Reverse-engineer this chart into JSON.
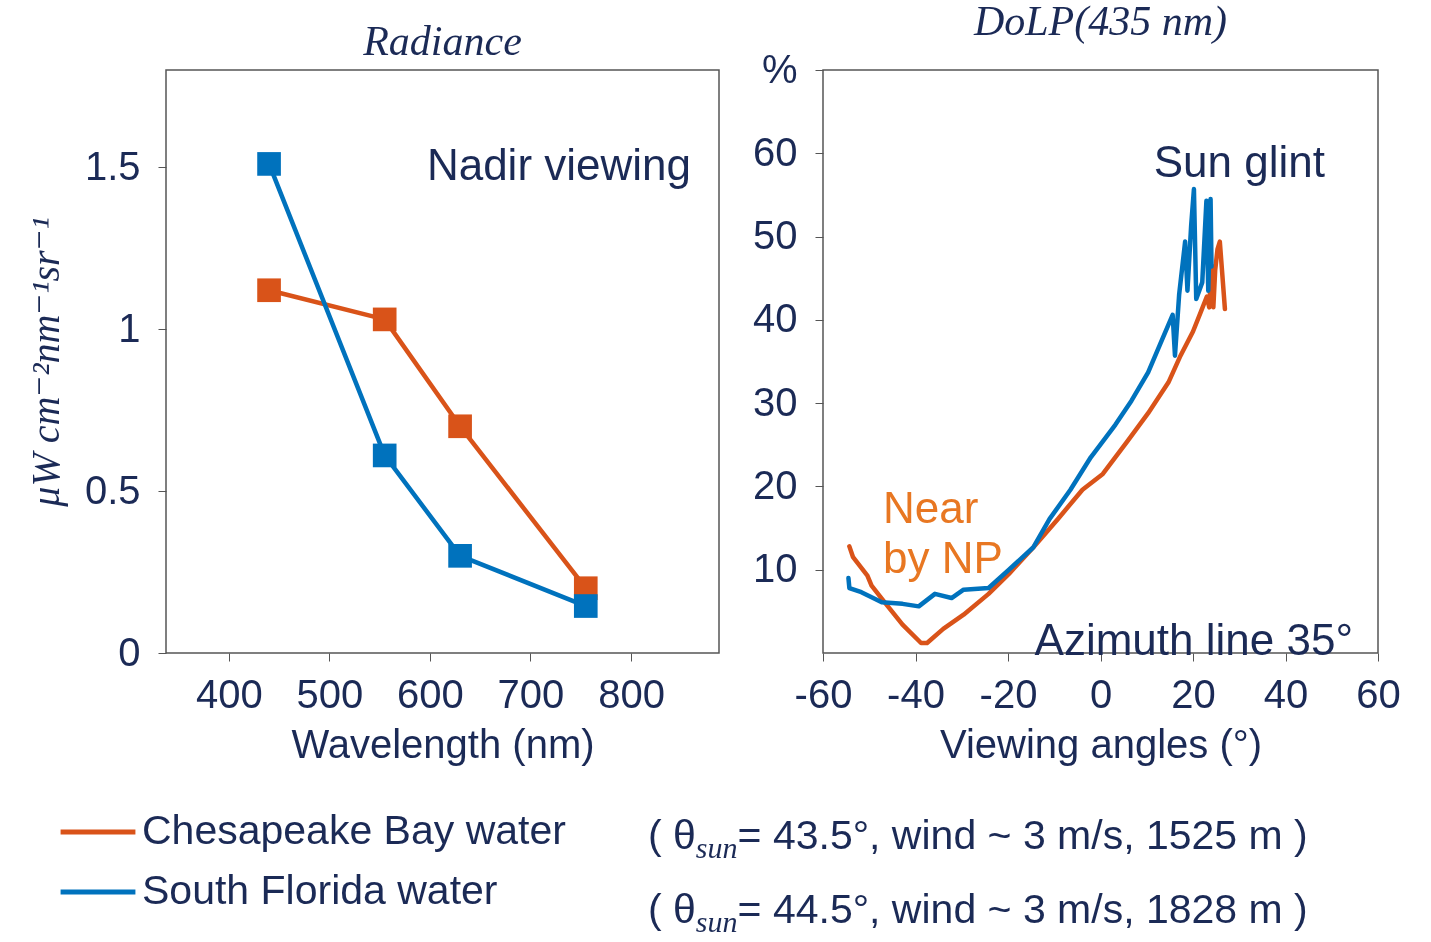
{
  "chart_data": [
    {
      "type": "line",
      "title": "Radiance",
      "xlabel": "Wavelength (nm)",
      "ylabel": "μW cm⁻²nm⁻¹sr⁻¹",
      "xlim": [
        337.5,
        887.5
      ],
      "xticks": [
        400,
        500,
        600,
        700,
        800
      ],
      "ylim": [
        0,
        1.8
      ],
      "yticks": [
        0,
        0.5,
        1,
        1.5
      ],
      "x": [
        440,
        555,
        630,
        755
      ],
      "marker": "square",
      "legend": "bottom",
      "series": [
        {
          "name": "Chesapeake Bay water",
          "color": "#d95319",
          "values": [
            1.12,
            1.03,
            0.7,
            0.2
          ]
        },
        {
          "name": "South Florida water",
          "color": "#0072bd",
          "values": [
            1.51,
            0.61,
            0.3,
            0.145
          ]
        }
      ],
      "annotations": [
        "Nadir viewing",
        "( θ$_{sun}$= 43.5°, wind ~ 3 m/s, 1525 m )",
        "( θ$_{sun}$= 44.5°, wind ~ 3 m/s, 1828 m )"
      ]
    },
    {
      "type": "line",
      "title": "DoLP(435 nm)",
      "xlabel": "Viewing angles (°)",
      "xlim": [
        -60,
        60
      ],
      "xticks": [
        -60,
        -40,
        -20,
        0,
        20,
        40,
        60
      ],
      "ylim": [
        0,
        70
      ],
      "yticks": [
        10,
        20,
        30,
        40,
        50,
        60,
        {
          "value": 70,
          "label": "%"
        }
      ],
      "series": [
        {
          "color": "#d95319",
          "x": [
            -54.3,
            -53.5,
            -50.4,
            -49.5,
            -46.4,
            -42.8,
            -38.8,
            -37.5,
            -34,
            -29.6,
            -24.2,
            -19.8,
            -14.5,
            -9.2,
            -3.9,
            0.5,
            5.8,
            10.3,
            14.7,
            17.3,
            20,
            21.8,
            23,
            23.5,
            24,
            24.4,
            24.8,
            25.3,
            25.8,
            26.9
          ],
          "values": [
            12.8,
            11.5,
            9.3,
            8.1,
            5.9,
            3.4,
            1.2,
            1.2,
            2.9,
            4.6,
            7.1,
            9.5,
            12.7,
            16.1,
            19.6,
            21.5,
            25.4,
            28.8,
            32.5,
            35.7,
            38.6,
            41.1,
            42.8,
            41.5,
            46.5,
            41.5,
            46,
            48.5,
            49.4,
            41.3
          ]
        },
        {
          "color": "#0072bd",
          "x": [
            -54.5,
            -54.3,
            -51.7,
            -47.3,
            -42.8,
            -39.3,
            -35.8,
            -32.2,
            -29.6,
            -24.2,
            -19.8,
            -14.5,
            -11,
            -6.5,
            -2.1,
            3.2,
            6.7,
            10.3,
            12.9,
            15.6,
            16.1,
            17,
            18.3,
            18.8,
            19.6,
            20.2,
            20.7,
            22,
            22.9,
            23.3,
            23.8,
            24
          ],
          "values": [
            9,
            7.8,
            7.3,
            6.1,
            5.9,
            5.6,
            7.1,
            6.6,
            7.6,
            7.8,
            10,
            12.7,
            16.1,
            19.6,
            23.5,
            27.4,
            30.3,
            33.7,
            37.1,
            40.6,
            35.7,
            43,
            49.4,
            43.5,
            51.3,
            55.7,
            42.5,
            44.5,
            54.3,
            43.5,
            54.5,
            46.4
          ]
        }
      ],
      "annotations": [
        "Sun glint",
        "Near by NP",
        "Azimuth line  35°"
      ]
    }
  ]
}
